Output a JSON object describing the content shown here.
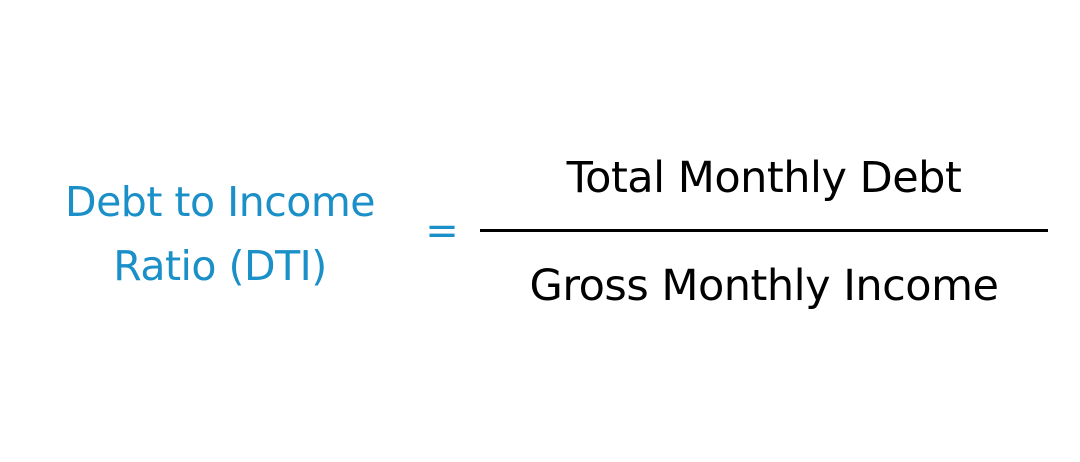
{
  "formula": {
    "lhs_line1": "Debt to Income",
    "lhs_line2": "Ratio (DTI)",
    "equals": "=",
    "numerator": "Total Monthly Debt",
    "denominator": "Gross Monthly Income"
  },
  "colors": {
    "lhs_text": "#1a8fc8",
    "equals": "#1a8fc8",
    "fraction_text": "#000000",
    "fraction_bar": "#000000",
    "background": "#ffffff"
  }
}
